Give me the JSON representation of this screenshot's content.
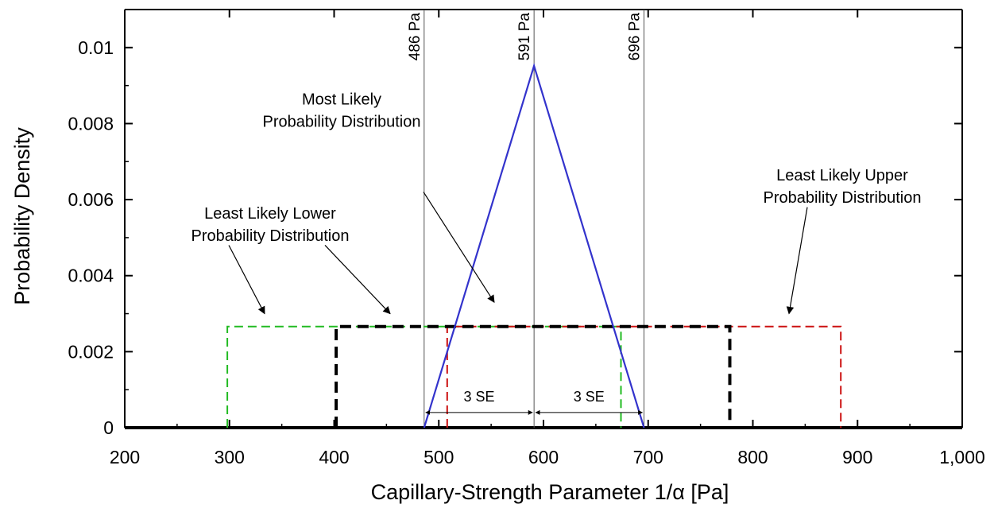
{
  "chart_data": {
    "type": "line",
    "xlabel": "Capillary-Strength Parameter 1/α [Pa]",
    "ylabel": "Probability Density",
    "xlim": [
      200,
      1000
    ],
    "ylim": [
      0,
      0.011
    ],
    "x_ticks": [
      200,
      300,
      400,
      500,
      600,
      700,
      800,
      900,
      1000
    ],
    "x_tick_labels": [
      "200",
      "300",
      "400",
      "500",
      "600",
      "700",
      "800",
      "900",
      "1,000"
    ],
    "y_ticks": [
      0,
      0.002,
      0.004,
      0.006,
      0.008,
      0.01
    ],
    "y_tick_labels": [
      "0",
      "0.002",
      "0.004",
      "0.006",
      "0.008",
      "0.01"
    ],
    "grid": false,
    "series": [
      {
        "x": [
          486,
          591,
          696
        ],
        "y": [
          0,
          0.00952,
          0
        ],
        "color": "#3333cc",
        "dash": "solid"
      },
      {
        "x": [
          298,
          298,
          674,
          674
        ],
        "y": [
          0,
          0.00266,
          0.00266,
          0
        ],
        "color": "#22bb22",
        "dash": "dashed"
      },
      {
        "x": [
          402,
          402,
          778,
          778
        ],
        "y": [
          0,
          0.00266,
          0.00266,
          0
        ],
        "color": "#000000",
        "dash": "bold-dashed"
      },
      {
        "x": [
          508,
          508,
          884,
          884
        ],
        "y": [
          0,
          0.00266,
          0.00266,
          0
        ],
        "color": "#cc1111",
        "dash": "dashed"
      }
    ],
    "reference_lines": [
      {
        "x": 486,
        "label": "486 Pa"
      },
      {
        "x": 591,
        "label": "591 Pa"
      },
      {
        "x": 696,
        "label": "696 Pa"
      }
    ],
    "annotations": [
      {
        "lines": [
          "Most Likely",
          "Probability Distribution"
        ],
        "text_x": 430,
        "text_y": 0.0085,
        "arrow_from": [
          533,
          0.0062
        ],
        "arrow_to": [
          622,
          0.0033
        ]
      },
      {
        "lines": [
          "Least Likely Upper",
          "Probability Distribution"
        ],
        "text_x": 1060,
        "text_y": 0.0065,
        "arrow_from": [
          1016,
          0.0058
        ],
        "arrow_to": [
          993,
          0.003
        ]
      },
      {
        "lines": [
          "Least Likely Lower",
          "Probability Distribution"
        ],
        "text_x": 340,
        "text_y": 0.0055,
        "arrow_from": [
          288,
          0.0048
        ],
        "arrow_to": [
          333,
          0.003
        ]
      },
      {
        "lines": [
          ""
        ],
        "text_x": 0,
        "text_y": 0,
        "arrow_from": [
          409,
          0.0048
        ],
        "arrow_to": [
          491,
          0.003
        ]
      }
    ],
    "se_arrows": [
      {
        "from": 486,
        "to": 591,
        "y": 0.0004,
        "label": "3 SE"
      },
      {
        "from": 591,
        "to": 696,
        "y": 0.0004,
        "label": "3 SE"
      }
    ]
  }
}
